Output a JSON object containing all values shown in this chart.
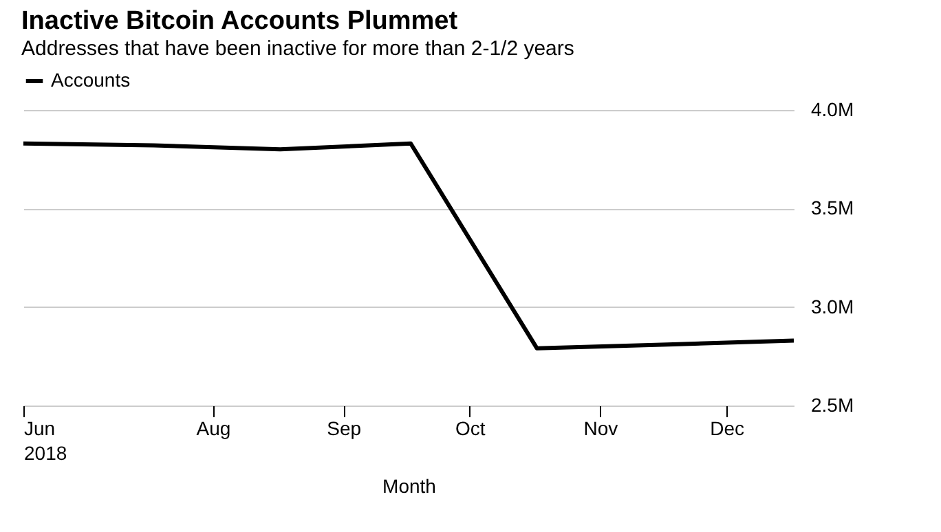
{
  "chart_data": {
    "type": "line",
    "title": "Inactive Bitcoin Accounts Plummet",
    "subtitle": "Addresses that have been inactive for more than 2-1/2 years",
    "xlabel": "Month",
    "x": [
      "2018-06-17",
      "2018-07-18",
      "2018-08-17",
      "2018-09-17",
      "2018-10-17",
      "2018-11-17",
      "2018-12-17"
    ],
    "series": [
      {
        "name": "Accounts",
        "color": "#000000",
        "values": [
          3830000,
          3820000,
          3800000,
          3830000,
          2790000,
          2810000,
          2830000
        ]
      }
    ],
    "xlim": [
      "2018-06-17",
      "2018-12-17"
    ],
    "xticks": [
      {
        "value": "2018-06-17",
        "label": "Jun 2018"
      },
      {
        "value": "2018-08-01",
        "label": "Aug"
      },
      {
        "value": "2018-09-01",
        "label": "Sep"
      },
      {
        "value": "2018-10-01",
        "label": "Oct"
      },
      {
        "value": "2018-11-01",
        "label": "Nov"
      },
      {
        "value": "2018-12-01",
        "label": "Dec"
      }
    ],
    "ylim": [
      2500000,
      4000000
    ],
    "yticks": [
      {
        "value": 2500000,
        "label": "2.5M"
      },
      {
        "value": 3000000,
        "label": "3.0M"
      },
      {
        "value": 3500000,
        "label": "3.5M"
      },
      {
        "value": 4000000,
        "label": "4.0M"
      }
    ],
    "grid": "y",
    "legend": "top left",
    "marker": "none",
    "line_style": "solid"
  }
}
